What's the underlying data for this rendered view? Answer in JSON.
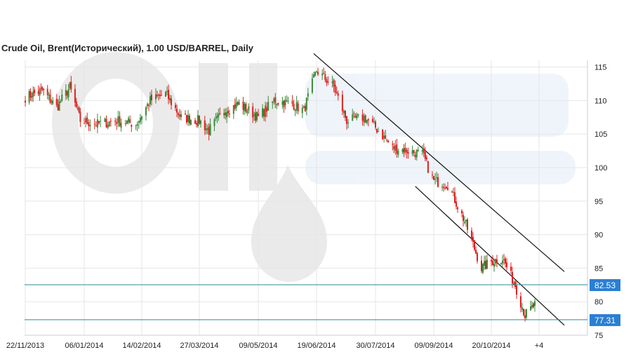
{
  "chart_data": {
    "type": "candlestick",
    "title": "Crude Oil, Brent(Исторический), 1.00 USD/BARREL, Daily",
    "ylim": [
      75,
      116
    ],
    "y_ticks": [
      75,
      80,
      85,
      90,
      95,
      100,
      105,
      110,
      115
    ],
    "x_ticks": [
      "22/11/2013",
      "06/01/2014",
      "14/02/2014",
      "27/03/2014",
      "09/05/2014",
      "19/06/2014",
      "30/07/2014",
      "09/09/2014",
      "20/10/2014",
      "+4"
    ],
    "grid": true,
    "up_color": "#3a8a3a",
    "down_color": "#e02020",
    "price_level_color": "#2a8a9a",
    "badge_color": "#2a7fd4",
    "price_levels": [
      {
        "label": "82.53",
        "value": 82.53
      },
      {
        "label": "77.31",
        "value": 77.31
      }
    ],
    "trendlines": [
      {
        "x": [
          "17/06/2014",
          "+4"
        ],
        "y": [
          117,
          84.5
        ]
      },
      {
        "x": [
          "27/08/2014",
          "+4"
        ],
        "y": [
          97.2,
          76.5
        ]
      }
    ],
    "waypoints": [
      {
        "date": "22/11/2013",
        "close": 110.5
      },
      {
        "date": "05/12/2013",
        "close": 111.5
      },
      {
        "date": "16/12/2013",
        "close": 109
      },
      {
        "date": "26/12/2013",
        "close": 112
      },
      {
        "date": "03/01/2014",
        "close": 107
      },
      {
        "date": "15/01/2014",
        "close": 106.5
      },
      {
        "date": "28/01/2014",
        "close": 107
      },
      {
        "date": "10/02/2014",
        "close": 106.5
      },
      {
        "date": "20/02/2014",
        "close": 110
      },
      {
        "date": "03/03/2014",
        "close": 111
      },
      {
        "date": "14/03/2014",
        "close": 107.5
      },
      {
        "date": "27/03/2014",
        "close": 107
      },
      {
        "date": "03/04/2014",
        "close": 105.5
      },
      {
        "date": "14/04/2014",
        "close": 108.5
      },
      {
        "date": "25/04/2014",
        "close": 109.5
      },
      {
        "date": "09/05/2014",
        "close": 107.5
      },
      {
        "date": "20/05/2014",
        "close": 110
      },
      {
        "date": "02/06/2014",
        "close": 109.5
      },
      {
        "date": "10/06/2014",
        "close": 108.5
      },
      {
        "date": "19/06/2014",
        "close": 114.5
      },
      {
        "date": "01/07/2014",
        "close": 112
      },
      {
        "date": "10/07/2014",
        "close": 107
      },
      {
        "date": "22/07/2014",
        "close": 107.5
      },
      {
        "date": "30/07/2014",
        "close": 106
      },
      {
        "date": "11/08/2014",
        "close": 103
      },
      {
        "date": "22/08/2014",
        "close": 102.5
      },
      {
        "date": "01/09/2014",
        "close": 102
      },
      {
        "date": "09/09/2014",
        "close": 98
      },
      {
        "date": "19/09/2014",
        "close": 97.5
      },
      {
        "date": "01/10/2014",
        "close": 92
      },
      {
        "date": "13/10/2014",
        "close": 85
      },
      {
        "date": "20/10/2014",
        "close": 86
      },
      {
        "date": "28/10/2014",
        "close": 86.5
      },
      {
        "date": "06/11/2014",
        "close": 82.5
      },
      {
        "date": "13/11/2014",
        "close": 78
      },
      {
        "date": "20/11/2014",
        "close": 79.5
      }
    ]
  }
}
